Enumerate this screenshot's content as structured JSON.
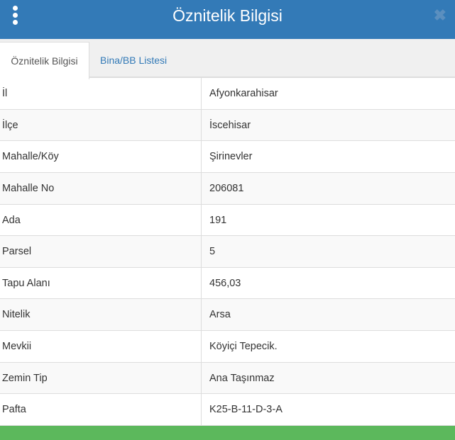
{
  "header": {
    "title": "Öznitelik Bilgisi",
    "menu_icon": "vertical-dots-icon",
    "close_icon": "close-icon",
    "close_glyph": "✖"
  },
  "tabs": [
    {
      "label": "Öznitelik Bilgisi",
      "active": true
    },
    {
      "label": "Bina/BB Listesi",
      "active": false
    }
  ],
  "rows": [
    {
      "key": "İl",
      "value": "Afyonkarahisar"
    },
    {
      "key": "İlçe",
      "value": "İscehisar"
    },
    {
      "key": "Mahalle/Köy",
      "value": "Şirinevler"
    },
    {
      "key": "Mahalle No",
      "value": "206081"
    },
    {
      "key": "Ada",
      "value": "191"
    },
    {
      "key": "Parsel",
      "value": "5"
    },
    {
      "key": "Tapu Alanı",
      "value": "456,03"
    },
    {
      "key": "Nitelik",
      "value": "Arsa"
    },
    {
      "key": "Mevkii",
      "value": "Köyiçi Tepecik."
    },
    {
      "key": "Zemin Tip",
      "value": "Ana Taşınmaz"
    },
    {
      "key": "Pafta",
      "value": "K25-B-11-D-3-A"
    }
  ],
  "colors": {
    "header": "#337ab7",
    "footer": "#5cb85c",
    "link": "#337ab7"
  }
}
